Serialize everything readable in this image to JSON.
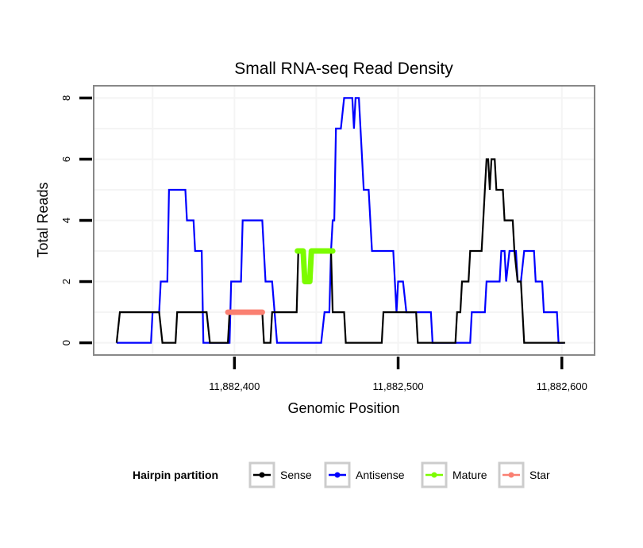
{
  "chart_data": {
    "type": "line",
    "title": "Small RNA-seq Read Density",
    "xlabel": "Genomic Position",
    "ylabel": "Total Reads",
    "xlim": [
      11882314,
      11882620
    ],
    "ylim": [
      -0.4,
      8.4
    ],
    "x_ticks": [
      11882400,
      11882500,
      11882600
    ],
    "x_tick_labels": [
      "11,882,400",
      "11,882,500",
      "11,882,600"
    ],
    "y_ticks": [
      0,
      2,
      4,
      6,
      8
    ],
    "y_tick_labels": [
      "0",
      "2",
      "4",
      "6",
      "8"
    ],
    "grid": true,
    "legend": {
      "title": "Hairpin partition",
      "placement": "bottom",
      "entries": [
        {
          "name": "Sense",
          "color": "#000000"
        },
        {
          "name": "Antisense",
          "color": "#0000ff"
        },
        {
          "name": "Mature",
          "color": "#7cfc00"
        },
        {
          "name": "Star",
          "color": "#fa8072"
        }
      ]
    },
    "series": [
      {
        "name": "Sense",
        "color": "#000000",
        "points": [
          [
            11882328,
            0
          ],
          [
            11882330,
            1
          ],
          [
            11882354,
            1
          ],
          [
            11882356,
            0
          ],
          [
            11882364,
            0
          ],
          [
            11882365,
            1
          ],
          [
            11882383,
            1
          ],
          [
            11882385,
            0
          ],
          [
            11882396,
            0
          ],
          [
            11882397,
            1
          ],
          [
            11882417,
            1
          ],
          [
            11882418,
            0
          ],
          [
            11882422,
            0
          ],
          [
            11882423,
            1
          ],
          [
            11882438,
            1
          ],
          [
            11882439,
            3
          ],
          [
            11882442,
            3
          ],
          [
            11882444,
            2
          ],
          [
            11882447,
            2
          ],
          [
            11882448,
            3
          ],
          [
            11882459,
            3
          ],
          [
            11882460,
            1
          ],
          [
            11882467,
            1
          ],
          [
            11882468,
            0
          ],
          [
            11882490,
            0
          ],
          [
            11882491,
            1
          ],
          [
            11882511,
            1
          ],
          [
            11882512,
            0
          ],
          [
            11882535,
            0
          ],
          [
            11882536,
            1
          ],
          [
            11882538,
            1
          ],
          [
            11882539,
            2
          ],
          [
            11882543,
            2
          ],
          [
            11882544,
            3
          ],
          [
            11882551,
            3
          ],
          [
            11882553,
            5
          ],
          [
            11882554,
            6
          ],
          [
            11882555,
            6
          ],
          [
            11882556,
            5
          ],
          [
            11882557,
            6
          ],
          [
            11882559,
            6
          ],
          [
            11882560,
            5
          ],
          [
            11882564,
            5
          ],
          [
            11882565,
            4
          ],
          [
            11882570,
            4
          ],
          [
            11882571,
            3
          ],
          [
            11882573,
            2
          ],
          [
            11882575,
            2
          ],
          [
            11882577,
            0
          ],
          [
            11882602,
            0
          ]
        ]
      },
      {
        "name": "Antisense",
        "color": "#0000ff",
        "points": [
          [
            11882328,
            0
          ],
          [
            11882349,
            0
          ],
          [
            11882350,
            1
          ],
          [
            11882354,
            1
          ],
          [
            11882355,
            2
          ],
          [
            11882359,
            2
          ],
          [
            11882360,
            5
          ],
          [
            11882370,
            5
          ],
          [
            11882371,
            4
          ],
          [
            11882375,
            4
          ],
          [
            11882376,
            3
          ],
          [
            11882380,
            3
          ],
          [
            11882381,
            0
          ],
          [
            11882397,
            0
          ],
          [
            11882398,
            2
          ],
          [
            11882404,
            2
          ],
          [
            11882405,
            4
          ],
          [
            11882417,
            4
          ],
          [
            11882419,
            2
          ],
          [
            11882423,
            2
          ],
          [
            11882426,
            0
          ],
          [
            11882453,
            0
          ],
          [
            11882455,
            1
          ],
          [
            11882458,
            1
          ],
          [
            11882459,
            3
          ],
          [
            11882460,
            4
          ],
          [
            11882461,
            4
          ],
          [
            11882462,
            7
          ],
          [
            11882465,
            7
          ],
          [
            11882467,
            8
          ],
          [
            11882472,
            8
          ],
          [
            11882473,
            7
          ],
          [
            11882474,
            8
          ],
          [
            11882476,
            8
          ],
          [
            11882479,
            5
          ],
          [
            11882482,
            5
          ],
          [
            11882484,
            3
          ],
          [
            11882486,
            3
          ],
          [
            11882497,
            3
          ],
          [
            11882499,
            1
          ],
          [
            11882500,
            2
          ],
          [
            11882503,
            2
          ],
          [
            11882505,
            1
          ],
          [
            11882520,
            1
          ],
          [
            11882521,
            0
          ],
          [
            11882544,
            0
          ],
          [
            11882545,
            1
          ],
          [
            11882553,
            1
          ],
          [
            11882554,
            2
          ],
          [
            11882562,
            2
          ],
          [
            11882563,
            3
          ],
          [
            11882565,
            3
          ],
          [
            11882566,
            2
          ],
          [
            11882568,
            3
          ],
          [
            11882572,
            3
          ],
          [
            11882573,
            2
          ],
          [
            11882575,
            2
          ],
          [
            11882577,
            3
          ],
          [
            11882583,
            3
          ],
          [
            11882584,
            2
          ],
          [
            11882588,
            2
          ],
          [
            11882589,
            1
          ],
          [
            11882597,
            1
          ],
          [
            11882598,
            0
          ],
          [
            11882601,
            0
          ]
        ]
      },
      {
        "name": "Mature",
        "color": "#7cfc00",
        "points": [
          [
            11882438.5,
            3
          ],
          [
            11882442,
            3
          ],
          [
            11882443,
            2
          ],
          [
            11882446,
            2
          ],
          [
            11882447,
            3
          ],
          [
            11882460,
            3
          ]
        ]
      },
      {
        "name": "Star",
        "color": "#fa8072",
        "points": [
          [
            11882396,
            1
          ],
          [
            11882417,
            1
          ]
        ]
      }
    ]
  }
}
